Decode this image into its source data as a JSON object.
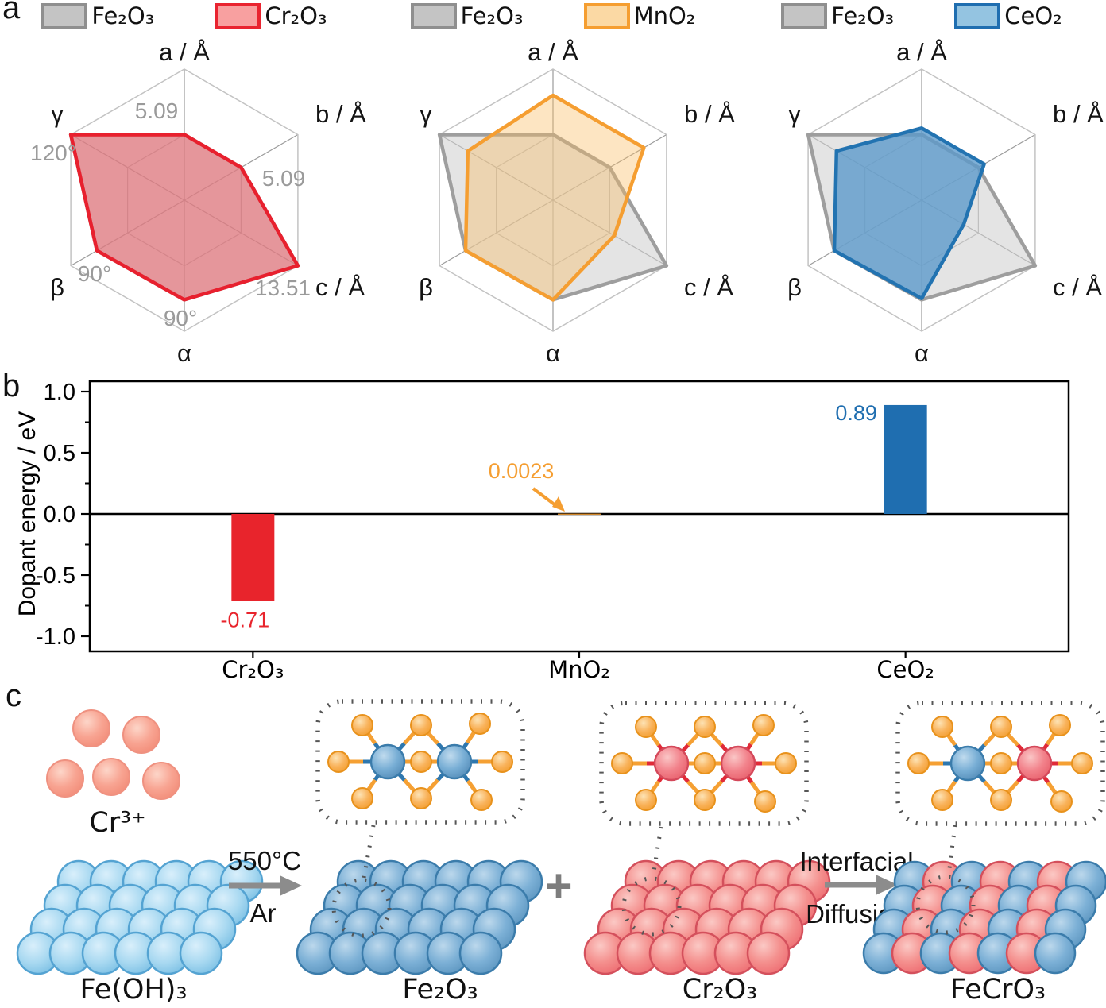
{
  "panels": {
    "a": "a",
    "b": "b",
    "c": "c"
  },
  "colors": {
    "radar_grid": "#c3c3c3",
    "radar_inner_grid": "#adadad",
    "radar_spoke": "#9b9b9b",
    "radar_tick_text": "#9a9a9a",
    "axis_text": "#141414",
    "arrow_gray": "#8c8c8c",
    "dashed_gray": "#565656",
    "plus_gray": "#7d7d7d",
    "bond_orange": "#f5a033",
    "bond_blue": "#2e77ae",
    "bond_red": "#e02a38",
    "bar_red": "#e8242c",
    "bar_orange": "#f59e31",
    "bar_blue": "#1f6eb0"
  },
  "chart_data": [
    {
      "type": "radar",
      "axes": [
        "a / Å",
        "b / Å",
        "c / Å",
        "α",
        "β",
        "γ"
      ],
      "series": [
        {
          "name": "Fe₂O₃",
          "swatch_fill": "#c4c4c4",
          "swatch_border": "#8f8f8f",
          "line": "#9e9e9e",
          "fill": "rgba(205,205,205,0.55)",
          "values_norm": [
            0.5,
            0.5,
            1.0,
            0.76,
            0.77,
            1.0
          ]
        },
        {
          "name": "Cr₂O₃",
          "swatch_fill": "#f8a0a0",
          "swatch_border": "#e92430",
          "line": "#e8202e",
          "fill": "rgba(230,85,95,0.55)",
          "values_norm": [
            0.5,
            0.5,
            1.0,
            0.76,
            0.77,
            1.0
          ]
        }
      ],
      "tick_labels": [
        "5.09",
        "5.09",
        "13.51",
        "90°",
        "90°",
        "120°"
      ]
    },
    {
      "type": "radar",
      "axes": [
        "a / Å",
        "b / Å",
        "c / Å",
        "α",
        "β",
        "γ"
      ],
      "series": [
        {
          "name": "Fe₂O₃",
          "swatch_fill": "#c4c4c4",
          "swatch_border": "#8f8f8f",
          "line": "#9e9e9e",
          "fill": "rgba(205,205,205,0.55)",
          "values_norm": [
            0.5,
            0.5,
            1.0,
            0.76,
            0.77,
            1.0
          ]
        },
        {
          "name": "MnO₂",
          "swatch_fill": "#fbd9a4",
          "swatch_border": "#f59e31",
          "line": "#f59e31",
          "fill": "rgba(249,186,95,0.38)",
          "values_norm": [
            0.8,
            0.8,
            0.54,
            0.76,
            0.77,
            0.75
          ]
        }
      ],
      "tick_labels": null
    },
    {
      "type": "radar",
      "axes": [
        "a / Å",
        "b / Å",
        "c / Å",
        "α",
        "β",
        "γ"
      ],
      "series": [
        {
          "name": "Fe₂O₃",
          "swatch_fill": "#c4c4c4",
          "swatch_border": "#8f8f8f",
          "line": "#9e9e9e",
          "fill": "rgba(205,205,205,0.55)",
          "values_norm": [
            0.5,
            0.5,
            1.0,
            0.76,
            0.77,
            1.0
          ]
        },
        {
          "name": "CeO₂",
          "swatch_fill": "#94c4e1",
          "swatch_border": "#1f6eb0",
          "line": "#2273b1",
          "fill": "rgba(90,153,202,0.78)",
          "values_norm": [
            0.55,
            0.55,
            0.37,
            0.75,
            0.77,
            0.75
          ]
        }
      ],
      "tick_labels": null
    },
    {
      "type": "bar",
      "ylabel": "Dopant energy / eV",
      "categories": [
        "Cr₂O₃",
        "MnO₂",
        "CeO₂"
      ],
      "values": [
        -0.71,
        0.0023,
        0.89
      ],
      "value_labels": [
        "-0.71",
        "0.0023",
        "0.89"
      ],
      "bar_colors": [
        "#e8242c",
        "#f59e31",
        "#1f6eb0"
      ],
      "ylim": [
        -1.12,
        1.08
      ],
      "yticks": [
        1.0,
        0.5,
        0.0,
        -0.5,
        -1.0
      ],
      "ytick_labels": [
        "1.0",
        "0.5",
        "0.0",
        "-0.5",
        "-1.0"
      ],
      "yticks_minor": [
        0.75,
        0.25,
        -0.25,
        -0.75
      ]
    }
  ],
  "panel_c": {
    "cr_ion_label": "Cr³⁺",
    "reactant_label": "Fe(OH)₃",
    "arrow1_top": "550°C",
    "arrow1_bottom": "Ar",
    "product1_label": "Fe₂O₃",
    "plus_sign": "+",
    "product2_label": "Cr₂O₃",
    "arrow2_top": "Interfacial",
    "arrow2_bottom": "Diffusion",
    "product3_label": "FeCrO₃"
  }
}
